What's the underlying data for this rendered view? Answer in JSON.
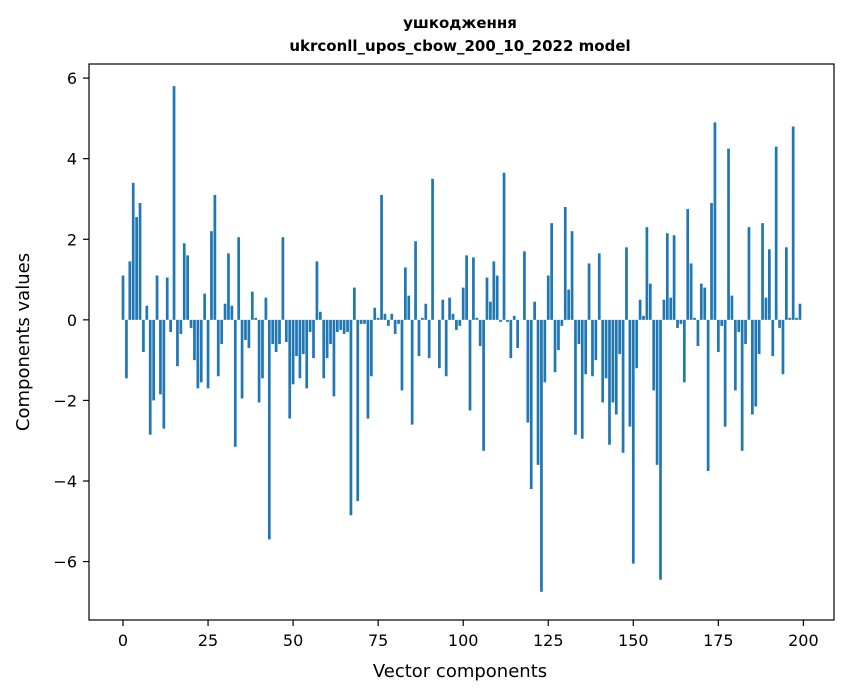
{
  "chart_data": {
    "type": "bar",
    "title_line1": "ушкодження",
    "title_line2": "ukrconll_upos_cbow_200_10_2022 model",
    "xlabel": "Vector components",
    "ylabel": "Components values",
    "xlim": [
      -10,
      209
    ],
    "ylim": [
      -7.45,
      6.35
    ],
    "xticks": [
      0,
      25,
      50,
      75,
      100,
      125,
      150,
      175,
      200
    ],
    "yticks": [
      -6,
      -4,
      -2,
      0,
      2,
      4,
      6
    ],
    "bar_color": "#1f77b4",
    "values": [
      1.1,
      -1.45,
      1.45,
      3.4,
      2.55,
      2.9,
      -0.8,
      0.35,
      -2.85,
      -2.0,
      1.1,
      -1.85,
      -2.7,
      1.05,
      -0.3,
      5.8,
      -1.15,
      -0.35,
      1.9,
      1.6,
      -0.2,
      -1.0,
      -1.7,
      -1.55,
      0.65,
      -1.7,
      2.2,
      3.1,
      -1.4,
      -0.6,
      0.4,
      1.65,
      0.35,
      -3.15,
      2.05,
      -1.95,
      -0.5,
      -0.7,
      0.7,
      0.05,
      -2.05,
      -1.45,
      0.55,
      -5.45,
      -0.6,
      -0.8,
      -0.6,
      2.05,
      -0.55,
      -2.45,
      -1.6,
      -0.9,
      -1.45,
      -0.85,
      -1.7,
      -0.3,
      -0.95,
      1.45,
      0.2,
      -1.45,
      -0.95,
      -0.6,
      -1.9,
      -0.3,
      -0.25,
      -0.35,
      -0.3,
      -4.85,
      0.8,
      -4.5,
      -0.1,
      -0.1,
      -2.45,
      -1.4,
      0.3,
      0.05,
      3.1,
      0.15,
      -0.15,
      0.15,
      -0.35,
      -0.1,
      -1.75,
      1.3,
      0.6,
      -2.6,
      1.95,
      -0.9,
      0.05,
      0.4,
      -0.95,
      3.5,
      0.0,
      -1.2,
      0.5,
      -1.4,
      0.55,
      0.15,
      -0.25,
      -0.15,
      0.8,
      1.6,
      -2.25,
      1.55,
      0.05,
      -0.65,
      -3.25,
      1.05,
      0.45,
      1.45,
      1.1,
      -0.05,
      3.65,
      -0.05,
      -0.95,
      0.1,
      -0.7,
      0.0,
      1.7,
      -2.55,
      -4.2,
      0.45,
      -3.6,
      -6.75,
      -1.55,
      1.1,
      2.4,
      -1.3,
      -0.75,
      -0.15,
      2.8,
      0.75,
      2.2,
      -2.85,
      -0.6,
      -2.95,
      -1.35,
      1.4,
      -1.4,
      -1.0,
      1.65,
      -2.05,
      -1.45,
      -3.1,
      -2.05,
      -2.35,
      -0.85,
      -3.3,
      1.8,
      -2.65,
      -6.05,
      -1.2,
      0.5,
      0.1,
      2.3,
      0.9,
      -1.75,
      -3.6,
      -6.45,
      0.5,
      2.15,
      0.55,
      2.1,
      -0.2,
      -0.1,
      -1.55,
      2.75,
      1.4,
      0.05,
      -0.65,
      0.9,
      0.8,
      -3.75,
      2.9,
      4.9,
      -0.8,
      -0.15,
      -2.65,
      4.25,
      0.6,
      -1.75,
      -0.3,
      -3.25,
      -0.6,
      2.3,
      -2.35,
      -2.15,
      -0.85,
      2.4,
      0.55,
      1.75,
      -0.9,
      4.3,
      -0.2,
      -1.35,
      1.8,
      0.05,
      4.8,
      0.05,
      0.4
    ]
  }
}
